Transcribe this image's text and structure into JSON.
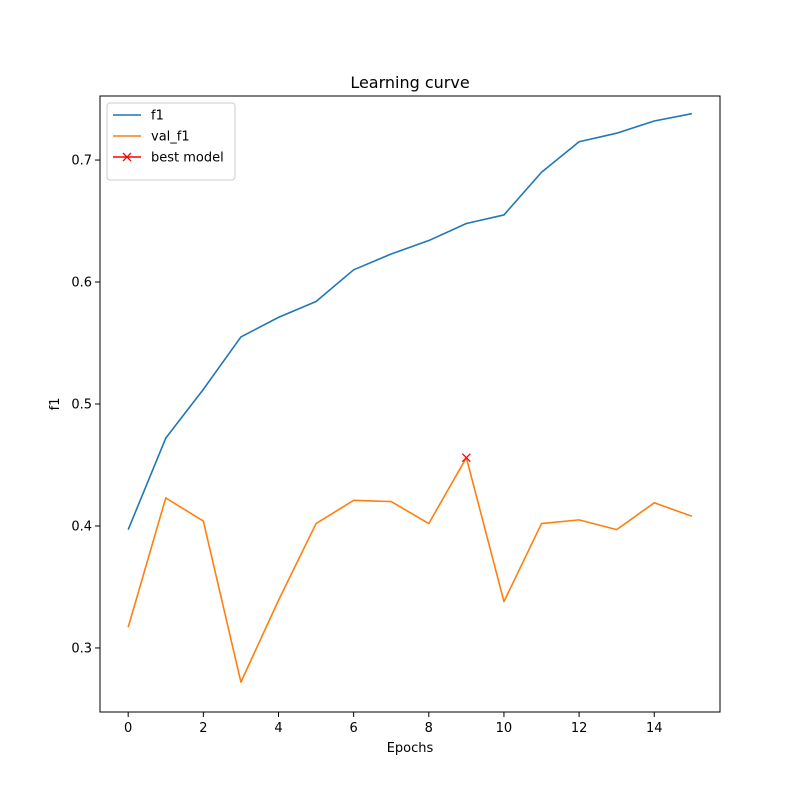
{
  "chart_data": {
    "type": "line",
    "title": "Learning curve",
    "xlabel": "Epochs",
    "ylabel": "f1",
    "xlim": [
      -0.75,
      15.75
    ],
    "ylim": [
      0.2475,
      0.7525
    ],
    "xticks": [
      0,
      2,
      4,
      6,
      8,
      10,
      12,
      14
    ],
    "yticks": [
      0.3,
      0.4,
      0.5,
      0.6,
      0.7
    ],
    "xtick_labels": [
      "0",
      "2",
      "4",
      "6",
      "8",
      "10",
      "12",
      "14"
    ],
    "ytick_labels": [
      "0.3",
      "0.4",
      "0.5",
      "0.6",
      "0.7"
    ],
    "grid": false,
    "legend_position": "top-left",
    "x": [
      0,
      1,
      2,
      3,
      4,
      5,
      6,
      7,
      8,
      9,
      10,
      11,
      12,
      13,
      14,
      15
    ],
    "series": [
      {
        "name": "f1",
        "color": "#1f77b4",
        "values": [
          0.397,
          0.472,
          0.512,
          0.555,
          0.571,
          0.584,
          0.61,
          0.623,
          0.634,
          0.648,
          0.655,
          0.69,
          0.715,
          0.722,
          0.732,
          0.738
        ]
      },
      {
        "name": "val_f1",
        "color": "#ff7f0e",
        "values": [
          0.317,
          0.423,
          0.404,
          0.272,
          0.339,
          0.402,
          0.421,
          0.42,
          0.402,
          0.456,
          0.338,
          0.402,
          0.405,
          0.397,
          0.419,
          0.408
        ]
      }
    ],
    "markers": [
      {
        "name": "best model",
        "color": "#ff0000",
        "marker": "x",
        "x": 9,
        "y": 0.456
      }
    ]
  }
}
